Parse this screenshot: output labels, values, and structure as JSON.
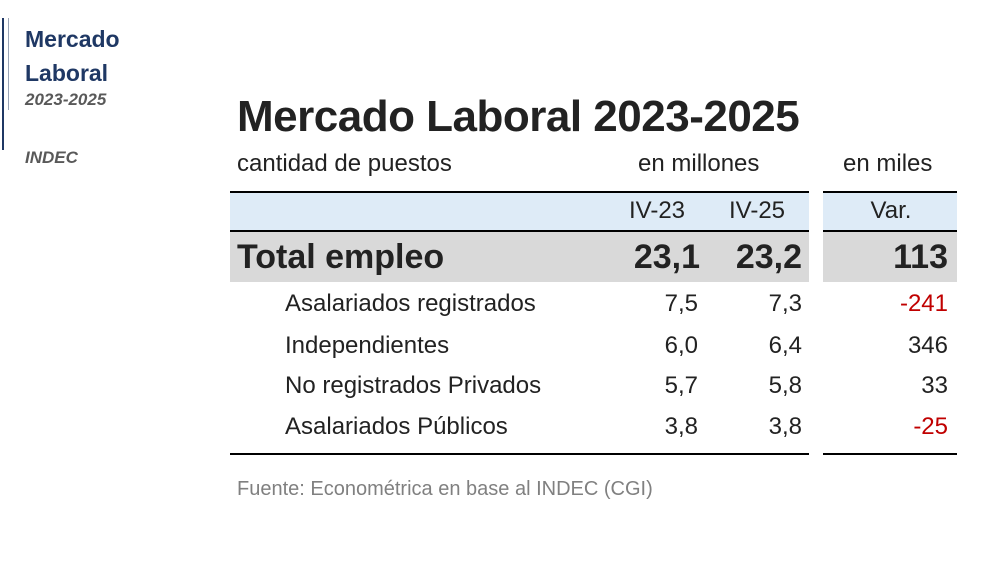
{
  "sidebar": {
    "title_line1": "Mercado",
    "title_line2": "Laboral",
    "period": "2023-2025",
    "source": "INDEC"
  },
  "table": {
    "title": "Mercado Laboral 2023-2025",
    "subtitle_left": "cantidad de puestos",
    "subtitle_mid": "en millones",
    "subtitle_right": "en miles",
    "columns": [
      "IV-23",
      "IV-25",
      "Var."
    ],
    "total": {
      "label": "Total empleo",
      "iv23": "23,1",
      "iv25": "23,2",
      "var": "113"
    },
    "rows": [
      {
        "label": "Asalariados registrados",
        "iv23": "7,5",
        "iv25": "7,3",
        "var": "-241"
      },
      {
        "label": "Independientes",
        "iv23": "6,0",
        "iv25": "6,4",
        "var": "346"
      },
      {
        "label": "No registrados Privados",
        "iv23": "5,7",
        "iv25": "5,8",
        "var": "33"
      },
      {
        "label": "Asalariados Públicos",
        "iv23": "3,8",
        "iv25": "3,8",
        "var": "-25"
      }
    ],
    "footnote": "Fuente: Econométrica en base al INDEC (CGI)",
    "negative_color": "#c00000",
    "header_fill": "#deebf7",
    "total_fill": "#d9d9d9"
  }
}
